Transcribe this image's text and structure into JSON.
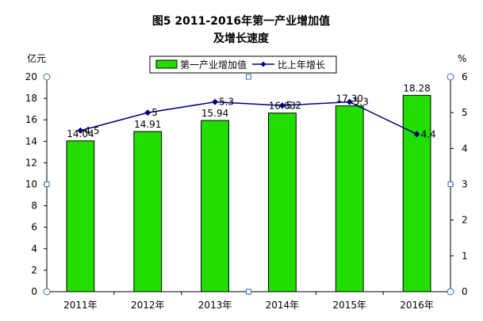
{
  "chart_data": {
    "type": "bar",
    "title_lines": [
      "图5  2011-2016年第一产业增加值",
      "及增长速度"
    ],
    "categories": [
      "2011年",
      "2012年",
      "2013年",
      "2014年",
      "2015年",
      "2016年"
    ],
    "y_left_unit": "亿元",
    "y_right_unit": "%",
    "ylim_left": [
      0,
      20
    ],
    "yticks_left": [
      "0",
      "2",
      "4",
      "6",
      "8",
      "10",
      "12",
      "14",
      "16",
      "18",
      "20"
    ],
    "ylim_right": [
      0,
      6
    ],
    "yticks_right": [
      "0",
      "1",
      "2",
      "3",
      "4",
      "5",
      "6"
    ],
    "grid": false,
    "legend_position": "top",
    "series": [
      {
        "name": "第一产业增加值",
        "type": "bar",
        "axis": "left",
        "values": [
          14.04,
          14.91,
          15.94,
          16.63,
          17.3,
          18.28
        ],
        "labels": [
          "14.04",
          "14.91",
          "15.94",
          "16.63",
          "17.30",
          "18.28"
        ],
        "color": "#22dd00",
        "border_color": "#000000"
      },
      {
        "name": "比上年增长",
        "type": "line",
        "axis": "right",
        "values": [
          4.5,
          5.0,
          5.3,
          5.2,
          5.3,
          4.4
        ],
        "labels": [
          "4.5",
          "5",
          "5.3",
          "5.2",
          "5.3",
          "4.4"
        ],
        "color": "#00007f"
      }
    ]
  }
}
